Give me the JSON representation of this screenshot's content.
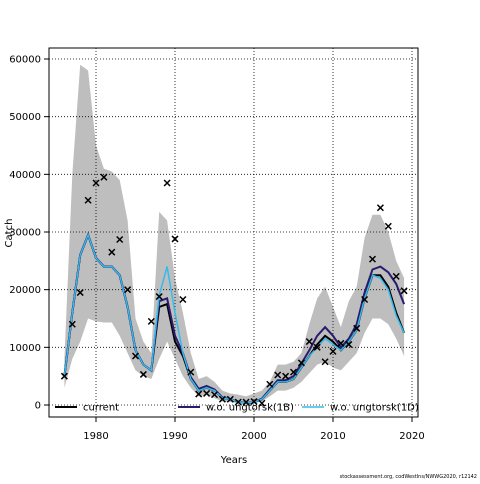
{
  "chart_data": {
    "type": "line",
    "x_label": "Years",
    "y_label": "Catch",
    "caption": "stockassessment.org, codWestIns/NWWG2020, r12142",
    "x": [
      1976,
      1977,
      1978,
      1979,
      1980,
      1981,
      1982,
      1983,
      1984,
      1985,
      1986,
      1987,
      1988,
      1989,
      1990,
      1991,
      1992,
      1993,
      1994,
      1995,
      1996,
      1997,
      1998,
      1999,
      2000,
      2001,
      2002,
      2003,
      2004,
      2005,
      2006,
      2007,
      2008,
      2009,
      2010,
      2011,
      2012,
      2013,
      2014,
      2015,
      2016,
      2017,
      2018,
      2019
    ],
    "band": {
      "color": "#bebebe",
      "lower": [
        3000,
        8000,
        11000,
        15000,
        14500,
        14300,
        14300,
        12000,
        9000,
        6000,
        5000,
        4500,
        8000,
        11000,
        8000,
        5000,
        3000,
        1500,
        1800,
        1200,
        600,
        500,
        300,
        200,
        300,
        600,
        1500,
        2500,
        2500,
        3000,
        4000,
        5500,
        7000,
        7500,
        6500,
        6000,
        7500,
        9000,
        12500,
        15000,
        15000,
        14000,
        11500,
        8500
      ],
      "upper": [
        8000,
        40000,
        59000,
        58000,
        45000,
        41000,
        40500,
        39000,
        32000,
        15000,
        11000,
        9000,
        33500,
        32000,
        22000,
        16000,
        9000,
        4500,
        5000,
        4000,
        2500,
        2000,
        1800,
        1500,
        2000,
        2500,
        4000,
        7000,
        7000,
        7500,
        9000,
        14000,
        18500,
        20500,
        17000,
        13500,
        18000,
        20500,
        29000,
        33000,
        33000,
        30000,
        25000,
        22000
      ]
    },
    "series": [
      {
        "name": "current",
        "color": "#000000",
        "width": 2,
        "values": [
          5000,
          16000,
          26000,
          29500,
          25500,
          24000,
          24000,
          22500,
          17000,
          9500,
          7000,
          6000,
          17000,
          17500,
          11000,
          8500,
          4500,
          2500,
          3000,
          2500,
          1200,
          1000,
          600,
          300,
          500,
          1000,
          2500,
          4000,
          4000,
          4500,
          6500,
          8500,
          10500,
          12000,
          11000,
          9500,
          11000,
          13000,
          18500,
          22500,
          22500,
          20500,
          16000,
          12500
        ]
      },
      {
        "name": "w.o. ungtorsk(1B)",
        "color": "#2a1b6e",
        "width": 2,
        "values": [
          5000,
          16000,
          26000,
          29500,
          25500,
          24000,
          24000,
          22500,
          17000,
          9500,
          7000,
          6000,
          18000,
          18500,
          12000,
          9000,
          4800,
          2800,
          3300,
          2700,
          1300,
          1000,
          600,
          300,
          500,
          1100,
          2700,
          4300,
          4300,
          5000,
          7200,
          9500,
          12000,
          13500,
          12000,
          10000,
          11500,
          14000,
          19500,
          23500,
          24000,
          23000,
          21000,
          17500
        ]
      },
      {
        "name": "w.o. ungtorsk(1D)",
        "color": "#33bbee",
        "width": 1.5,
        "values": [
          5000,
          16000,
          26000,
          29500,
          25500,
          24000,
          24000,
          22500,
          17000,
          9500,
          7000,
          6000,
          19000,
          24000,
          16000,
          9000,
          4500,
          2500,
          3000,
          2500,
          1200,
          1000,
          600,
          300,
          500,
          1000,
          2500,
          4000,
          4000,
          4500,
          6500,
          8500,
          10000,
          11500,
          10500,
          9500,
          11000,
          13000,
          18500,
          22500,
          22000,
          20000,
          15500,
          12500
        ]
      }
    ],
    "observations": {
      "color": "#000000",
      "values": [
        5000,
        14000,
        19500,
        35500,
        38500,
        39500,
        26500,
        28700,
        20000,
        8500,
        5300,
        14500,
        18800,
        38500,
        28800,
        18300,
        5700,
        1900,
        2000,
        1800,
        1000,
        1000,
        500,
        500,
        600,
        300,
        3600,
        5200,
        5000,
        5700,
        7300,
        11000,
        10000,
        7500,
        9300,
        10700,
        10500,
        13300,
        18300,
        25300,
        34200,
        31000,
        22300,
        19800
      ]
    },
    "xlim": [
      1974.05,
      2020.76
    ],
    "ylim": [
      -2081,
      61907
    ],
    "xticks": [
      1980,
      1990,
      2000,
      2010,
      2020
    ],
    "yticks": [
      0,
      10000,
      20000,
      30000,
      40000,
      50000,
      60000
    ],
    "grid": true,
    "legend": "bottom"
  }
}
